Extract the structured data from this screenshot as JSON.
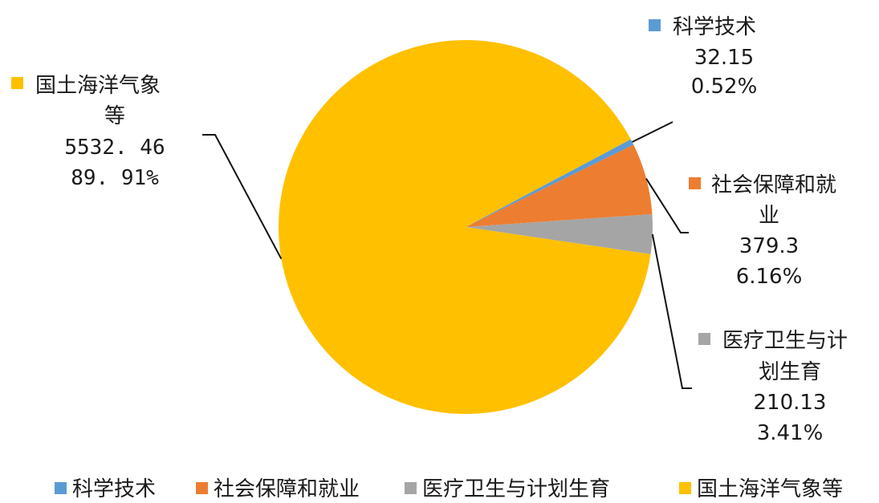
{
  "chart_data": {
    "type": "pie",
    "title": "",
    "slices": [
      {
        "name": "科学技术",
        "value": 32.15,
        "value_label": "32.15",
        "percent_label": "0.52%",
        "color": "#5B9BD5"
      },
      {
        "name": "社会保障和就业",
        "value": 379.3,
        "value_label": "379.3",
        "percent_label": "6.16%",
        "color": "#ED7D31"
      },
      {
        "name": "医疗卫生与计划生育",
        "value": 210.13,
        "value_label": "210.13",
        "percent_label": "3.41%",
        "color": "#A5A5A5"
      },
      {
        "name": "国土海洋气象等",
        "value": 5532.46,
        "value_label": "5532. 46",
        "percent_label": "89. 91%",
        "color": "#FFC000"
      }
    ],
    "data_labels": [
      {
        "lines": [
          "科学技术"
        ],
        "value": "32.15",
        "percent": "0.52%"
      },
      {
        "lines": [
          "社会保障和就",
          "业"
        ],
        "value": "379.3",
        "percent": "6.16%"
      },
      {
        "lines": [
          "医疗卫生与计",
          "划生育"
        ],
        "value": "210.13",
        "percent": "3.41%"
      },
      {
        "lines": [
          "国土海洋气象",
          "等"
        ],
        "value": "5532. 46",
        "percent": "89. 91%"
      }
    ],
    "legend": {
      "position": "bottom",
      "items": [
        "科学技术",
        "社会保障和就业",
        "医疗卫生与计划生育",
        "国土海洋气象等"
      ]
    }
  }
}
